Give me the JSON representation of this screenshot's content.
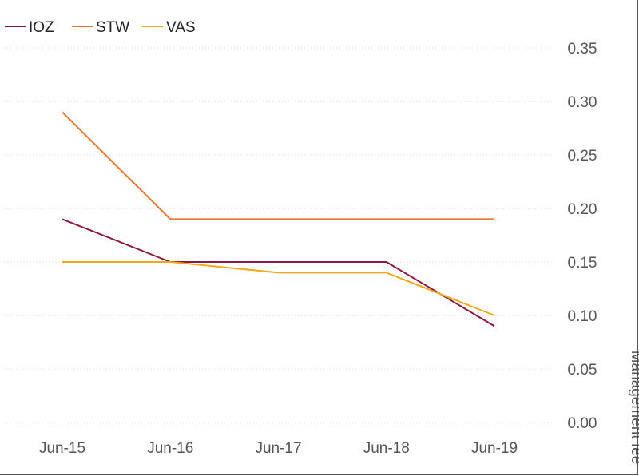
{
  "chart_data": {
    "type": "line",
    "categories": [
      "Jun-15",
      "Jun-16",
      "Jun-17",
      "Jun-18",
      "Jun-19"
    ],
    "series": [
      {
        "name": "IOZ",
        "color": "#8b1a3a",
        "values": [
          0.19,
          0.15,
          0.15,
          0.15,
          0.09
        ]
      },
      {
        "name": "STW",
        "color": "#e8772e",
        "values": [
          0.29,
          0.19,
          0.19,
          0.19,
          0.19
        ]
      },
      {
        "name": "VAS",
        "color": "#f2a81d",
        "values": [
          0.15,
          0.15,
          0.14,
          0.14,
          0.1
        ]
      }
    ],
    "ylabel": "Management fee",
    "ylim": [
      0,
      0.35
    ],
    "yticks": [
      "0.00",
      "0.05",
      "0.10",
      "0.15",
      "0.20",
      "0.25",
      "0.30",
      "0.35"
    ],
    "grid": true,
    "legend": "top-left",
    "y_axis_side": "right"
  }
}
